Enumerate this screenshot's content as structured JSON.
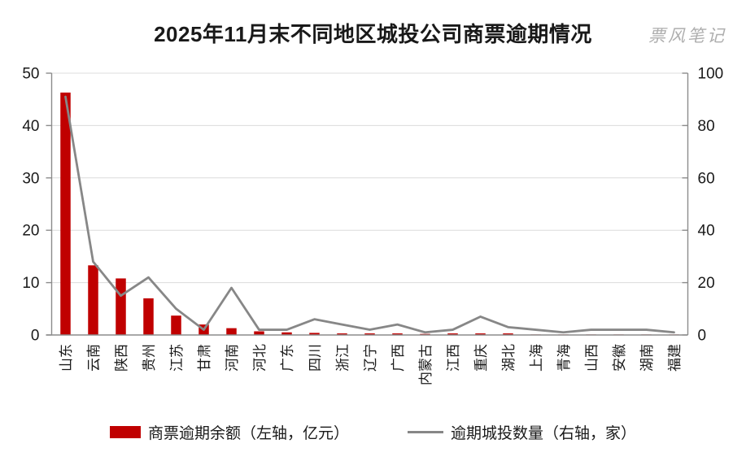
{
  "title": "2025年11月末不同地区城投公司商票逾期情况",
  "watermark": "票风笔记",
  "colors": {
    "bar": "#C00000",
    "line": "#878787",
    "grid": "#dcdcdc",
    "axis": "#8c8c8c",
    "text": "#1a1a1a"
  },
  "chart_data": {
    "type": "bar",
    "subtype": "bar-line-combo",
    "title": "2025年11月末不同地区城投公司商票逾期情况",
    "categories": [
      "山东",
      "云南",
      "陕西",
      "贵州",
      "江苏",
      "甘肃",
      "河南",
      "河北",
      "广东",
      "四川",
      "浙江",
      "辽宁",
      "广西",
      "内蒙古",
      "江西",
      "重庆",
      "湖北",
      "上海",
      "青海",
      "山西",
      "安徽",
      "湖南",
      "福建"
    ],
    "series": [
      {
        "name": "商票逾期余额（左轴，亿元）",
        "type": "bar",
        "axis": "left",
        "color": "#C00000",
        "values": [
          46.3,
          13.3,
          10.8,
          7.0,
          3.7,
          2.0,
          1.3,
          0.7,
          0.5,
          0.4,
          0.3,
          0.3,
          0.3,
          0.2,
          0.3,
          0.3,
          0.3,
          0.1,
          0.1,
          0.1,
          0.1,
          0.1,
          0.1
        ]
      },
      {
        "name": "逾期城投数量（右轴，家）",
        "type": "line",
        "axis": "right",
        "color": "#878787",
        "values": [
          91,
          28,
          15,
          22,
          10,
          2,
          18,
          2,
          2,
          6,
          4,
          2,
          4,
          1,
          2,
          7,
          3,
          2,
          1,
          2,
          2,
          2,
          1
        ]
      }
    ],
    "left_axis": {
      "min": 0,
      "max": 50,
      "ticks": [
        0,
        10,
        20,
        30,
        40,
        50
      ]
    },
    "right_axis": {
      "min": 0,
      "max": 100,
      "ticks": [
        0,
        20,
        40,
        60,
        80,
        100
      ]
    },
    "grid": true,
    "legend_position": "bottom"
  }
}
